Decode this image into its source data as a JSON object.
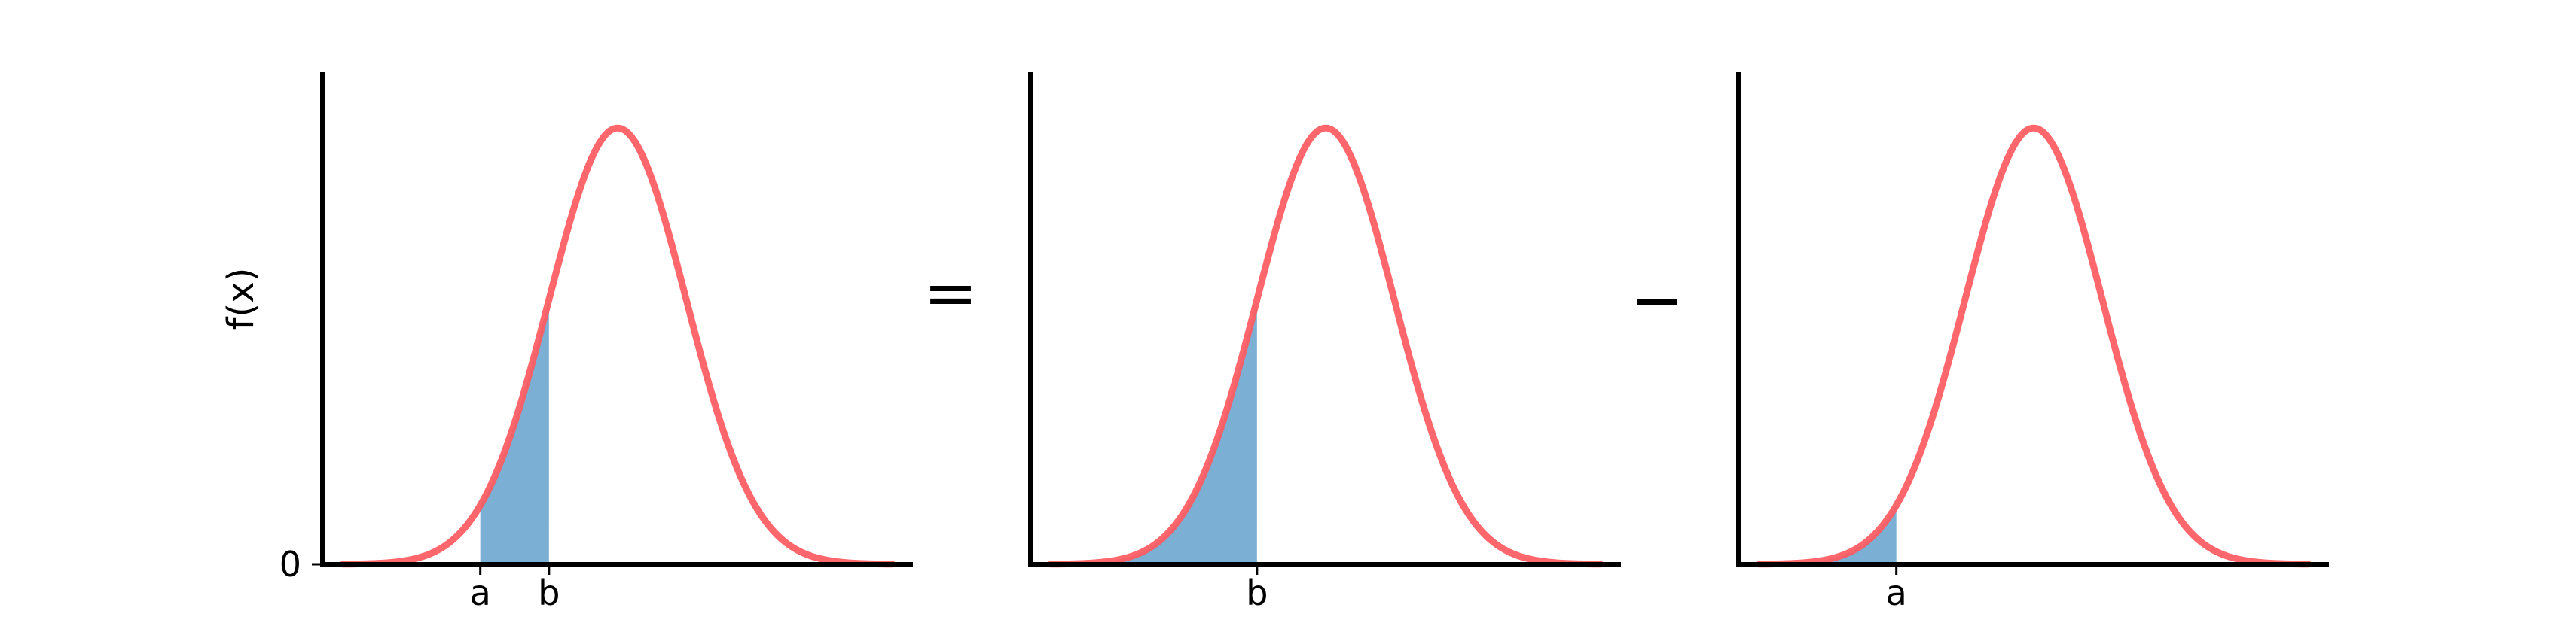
{
  "colors": {
    "curve": "#ff5a5f",
    "fill": "#7bafd4",
    "axis": "#000000",
    "background": "#ffffff"
  },
  "operators": {
    "equals": "=",
    "minus": "−"
  },
  "chart_data": [
    {
      "type": "area",
      "title": "",
      "xlabel": "",
      "ylabel": "f(x)",
      "curve": "normal-density",
      "xlim": [
        -4.3,
        4.3
      ],
      "ylim": [
        0,
        0.45
      ],
      "mean": 0,
      "sd": 1,
      "shaded_interval": [
        -2,
        -1
      ],
      "x_ticks": [
        {
          "value": -2,
          "label": "a"
        },
        {
          "value": -1,
          "label": "b"
        }
      ],
      "y_ticks": [
        {
          "value": 0,
          "label": "0"
        }
      ],
      "grid": false,
      "legend": "none"
    },
    {
      "type": "area",
      "title": "",
      "xlabel": "",
      "ylabel": "",
      "curve": "normal-density",
      "xlim": [
        -4.3,
        4.3
      ],
      "ylim": [
        0,
        0.45
      ],
      "mean": 0,
      "sd": 1,
      "shaded_interval": [
        -4,
        -1
      ],
      "x_ticks": [
        {
          "value": -1,
          "label": "b"
        }
      ],
      "y_ticks": [],
      "grid": false,
      "legend": "none"
    },
    {
      "type": "area",
      "title": "",
      "xlabel": "",
      "ylabel": "",
      "curve": "normal-density",
      "xlim": [
        -4.3,
        4.3
      ],
      "ylim": [
        0,
        0.45
      ],
      "mean": 0,
      "sd": 1,
      "shaded_interval": [
        -4,
        -2
      ],
      "x_ticks": [
        {
          "value": -2,
          "label": "a"
        }
      ],
      "y_ticks": [],
      "grid": false,
      "legend": "none"
    }
  ]
}
